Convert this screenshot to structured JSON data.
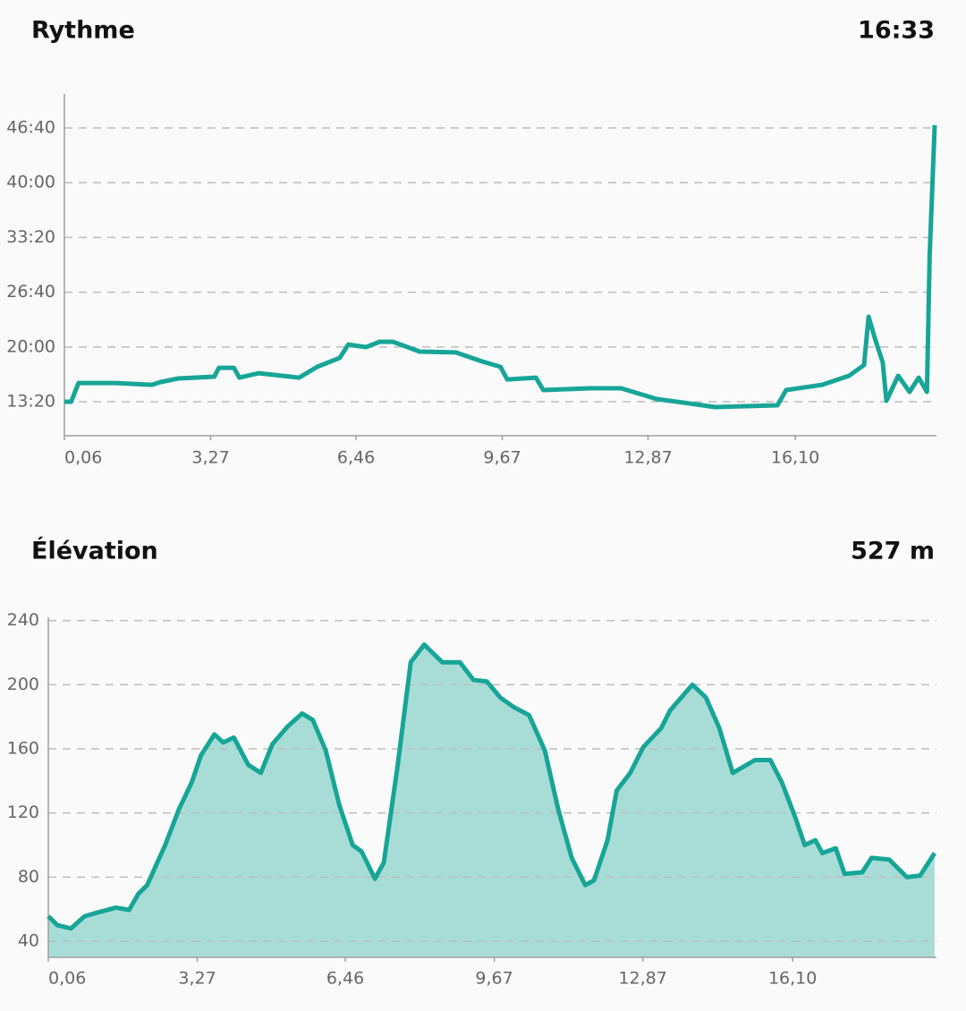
{
  "chart_data": [
    {
      "type": "line",
      "title": "Rythme",
      "headline_value": "16:33",
      "color": "#17a597",
      "xlim": [
        0.06,
        19.2
      ],
      "ylim": [
        552,
        3048
      ],
      "grid": true,
      "xticks": [
        {
          "value": 0.06,
          "label": "0,06"
        },
        {
          "value": 3.27,
          "label": "3,27"
        },
        {
          "value": 6.46,
          "label": "6,46"
        },
        {
          "value": 9.67,
          "label": "9,67"
        },
        {
          "value": 12.87,
          "label": "12,87"
        },
        {
          "value": 16.1,
          "label": "16,10"
        }
      ],
      "yticks": [
        {
          "value": 800,
          "label": "13:20"
        },
        {
          "value": 1200,
          "label": "20:00"
        },
        {
          "value": 1600,
          "label": "26:40"
        },
        {
          "value": 2000,
          "label": "33:20"
        },
        {
          "value": 2400,
          "label": "40:00"
        },
        {
          "value": 2800,
          "label": "46:40"
        }
      ],
      "x": [
        0.06,
        0.21,
        0.37,
        1.19,
        1.98,
        2.17,
        2.56,
        3.35,
        3.45,
        3.78,
        3.9,
        4.33,
        5.21,
        5.61,
        6.1,
        6.29,
        6.68,
        6.98,
        7.27,
        7.86,
        8.65,
        9.23,
        9.63,
        9.78,
        10.41,
        10.57,
        11.59,
        12.28,
        13.06,
        13.94,
        14.34,
        15.71,
        15.9,
        16.69,
        17.28,
        17.61,
        17.71,
        17.86,
        18.02,
        18.1,
        18.36,
        18.61,
        18.81,
        18.99,
        19.05,
        19.16
      ],
      "values": [
        800,
        800,
        937,
        937,
        924,
        944,
        970,
        983,
        1048,
        1048,
        976,
        1009,
        976,
        1055,
        1120,
        1218,
        1199,
        1238,
        1238,
        1166,
        1160,
        1094,
        1055,
        963,
        976,
        885,
        898,
        898,
        820,
        780,
        761,
        774,
        885,
        924,
        990,
        1068,
        1421,
        1251,
        1088,
        807,
        990,
        872,
        976,
        872,
        1872,
        2820
      ]
    },
    {
      "type": "area",
      "title": "Élévation",
      "headline_value": "527 m",
      "color": "#17a597",
      "fill_color": "#a8ddd7",
      "xlim": [
        0.06,
        19.2
      ],
      "ylim": [
        30,
        242
      ],
      "grid": true,
      "xticks": [
        {
          "value": 0.06,
          "label": "0,06"
        },
        {
          "value": 3.27,
          "label": "3,27"
        },
        {
          "value": 6.46,
          "label": "6,46"
        },
        {
          "value": 9.67,
          "label": "9,67"
        },
        {
          "value": 12.87,
          "label": "12,87"
        },
        {
          "value": 16.1,
          "label": "16,10"
        }
      ],
      "yticks": [
        40,
        80,
        120,
        160,
        200,
        240
      ],
      "x": [
        0.06,
        0.26,
        0.55,
        0.84,
        1.13,
        1.52,
        1.8,
        2.0,
        2.19,
        2.58,
        2.87,
        3.15,
        3.35,
        3.64,
        3.83,
        4.06,
        4.37,
        4.64,
        4.89,
        5.22,
        5.53,
        5.76,
        6.04,
        6.33,
        6.62,
        6.81,
        7.1,
        7.29,
        7.59,
        7.87,
        8.16,
        8.55,
        8.93,
        9.22,
        9.51,
        9.8,
        10.09,
        10.42,
        10.76,
        11.05,
        11.34,
        11.63,
        11.82,
        12.11,
        12.31,
        12.6,
        12.88,
        13.27,
        13.46,
        13.94,
        14.23,
        14.52,
        14.81,
        15.29,
        15.62,
        15.87,
        16.16,
        16.36,
        16.59,
        16.74,
        17.03,
        17.22,
        17.6,
        17.8,
        18.18,
        18.56,
        18.85,
        19.16
      ],
      "values": [
        55.6,
        50,
        48,
        55.6,
        58,
        61,
        59.5,
        69.5,
        75,
        100,
        122,
        139,
        156,
        169,
        164,
        167,
        150,
        145,
        163,
        174,
        182,
        178,
        159,
        125,
        100,
        96,
        79,
        89,
        150,
        214,
        225,
        214,
        214,
        203,
        202,
        192,
        186,
        181,
        159,
        122,
        92,
        75,
        78,
        103,
        134,
        145,
        161,
        173,
        184,
        200,
        192,
        173,
        145,
        153,
        153,
        139,
        117,
        100,
        103,
        95,
        98,
        82,
        83,
        92,
        91,
        80,
        81,
        95
      ]
    }
  ]
}
